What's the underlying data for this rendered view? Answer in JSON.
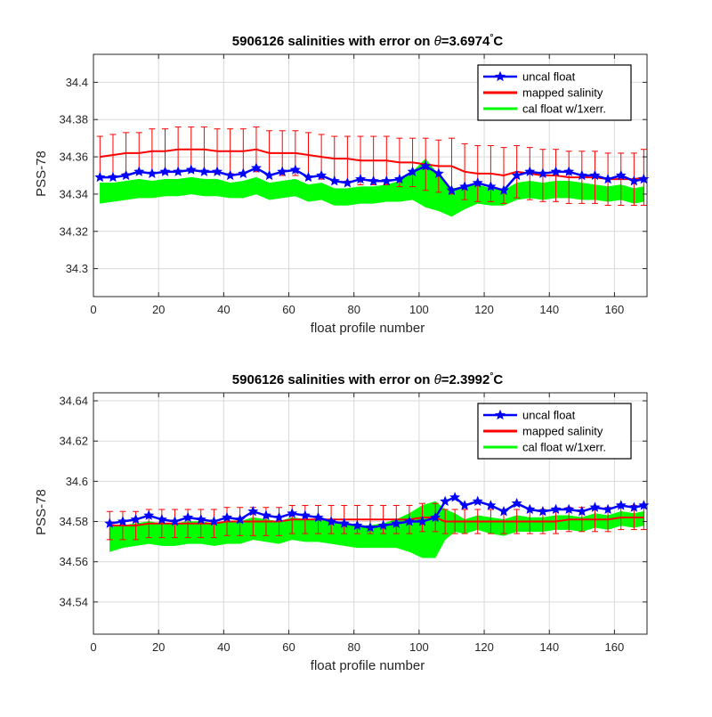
{
  "figure": {
    "background": "#ffffff",
    "axes_background": "#ffffff",
    "colors": {
      "uncal": "#0000ff",
      "mapped": "#ff0000",
      "cal": "#00ff00",
      "grid": "#d9d9d9",
      "axis": "#262626"
    }
  },
  "chart_data": [
    {
      "type": "line",
      "title_main": "5906126 salinities with error on ",
      "title_theta": "θ",
      "title_value": "=3.6974",
      "title_deg": "°",
      "title_unit": "C",
      "xlabel": "float profile number",
      "ylabel": "PSS-78",
      "xlim": [
        0,
        170
      ],
      "ylim": [
        34.285,
        34.415
      ],
      "xticks": [
        0,
        20,
        40,
        60,
        80,
        100,
        120,
        140,
        160
      ],
      "xtick_labels": [
        "0",
        "20",
        "40",
        "60",
        "80",
        "100",
        "120",
        "140",
        "160"
      ],
      "yticks": [
        34.3,
        34.32,
        34.34,
        34.36,
        34.38,
        34.4
      ],
      "ytick_labels": [
        "34.3",
        "34.32",
        "34.34",
        "34.36",
        "34.38",
        "34.4"
      ],
      "grid": true,
      "legend_position": "top-right",
      "legend": [
        "uncal float",
        "mapped salinity",
        "cal float w/1xerr."
      ],
      "x": [
        2,
        6,
        10,
        14,
        18,
        22,
        26,
        30,
        34,
        38,
        42,
        46,
        50,
        54,
        58,
        62,
        66,
        70,
        74,
        78,
        82,
        86,
        90,
        94,
        98,
        102,
        106,
        110,
        114,
        118,
        122,
        126,
        130,
        134,
        138,
        142,
        146,
        150,
        154,
        158,
        162,
        166,
        169
      ],
      "series": [
        {
          "name": "uncal float",
          "style": "line-star",
          "y": [
            34.349,
            34.349,
            34.35,
            34.352,
            34.351,
            34.352,
            34.352,
            34.353,
            34.352,
            34.352,
            34.35,
            34.351,
            34.354,
            34.35,
            34.352,
            34.353,
            34.349,
            34.35,
            34.347,
            34.346,
            34.348,
            34.347,
            34.347,
            34.348,
            34.352,
            34.355,
            34.351,
            34.342,
            34.344,
            34.346,
            34.344,
            34.342,
            34.35,
            34.352,
            34.351,
            34.352,
            34.352,
            34.35,
            34.35,
            34.348,
            34.35,
            34.347,
            34.348
          ]
        },
        {
          "name": "mapped salinity",
          "style": "line-errorbar",
          "y": [
            34.36,
            34.361,
            34.362,
            34.362,
            34.363,
            34.363,
            34.364,
            34.364,
            34.364,
            34.363,
            34.363,
            34.363,
            34.364,
            34.362,
            34.362,
            34.362,
            34.361,
            34.36,
            34.359,
            34.359,
            34.358,
            34.358,
            34.358,
            34.357,
            34.357,
            34.356,
            34.355,
            34.355,
            34.352,
            34.351,
            34.351,
            34.35,
            34.352,
            34.351,
            34.35,
            34.35,
            34.349,
            34.349,
            34.349,
            34.348,
            34.348,
            34.348,
            34.349
          ],
          "err": [
            0.011,
            0.011,
            0.011,
            0.011,
            0.012,
            0.012,
            0.012,
            0.012,
            0.012,
            0.012,
            0.012,
            0.012,
            0.012,
            0.012,
            0.012,
            0.012,
            0.012,
            0.012,
            0.012,
            0.012,
            0.013,
            0.013,
            0.013,
            0.013,
            0.013,
            0.014,
            0.014,
            0.015,
            0.015,
            0.015,
            0.015,
            0.015,
            0.014,
            0.014,
            0.014,
            0.014,
            0.014,
            0.014,
            0.014,
            0.014,
            0.014,
            0.014,
            0.015
          ]
        },
        {
          "name": "cal float w/1xerr.",
          "style": "band",
          "upper": [
            34.346,
            34.346,
            34.347,
            34.348,
            34.347,
            34.348,
            34.348,
            34.349,
            34.348,
            34.348,
            34.346,
            34.347,
            34.349,
            34.346,
            34.347,
            34.348,
            34.345,
            34.346,
            34.343,
            34.343,
            34.344,
            34.344,
            34.345,
            34.347,
            34.352,
            34.359,
            34.35,
            34.343,
            34.344,
            34.345,
            34.343,
            34.342,
            34.346,
            34.347,
            34.346,
            34.347,
            34.347,
            34.346,
            34.345,
            34.344,
            34.345,
            34.343,
            34.344
          ],
          "lower": [
            34.335,
            34.336,
            34.337,
            34.338,
            34.338,
            34.339,
            34.339,
            34.34,
            34.339,
            34.339,
            34.338,
            34.338,
            34.34,
            34.337,
            34.338,
            34.339,
            34.336,
            34.337,
            34.334,
            34.334,
            34.335,
            34.335,
            34.336,
            34.336,
            34.337,
            34.333,
            34.331,
            34.328,
            34.332,
            34.335,
            34.334,
            34.334,
            34.337,
            34.338,
            34.337,
            34.338,
            34.338,
            34.337,
            34.337,
            34.336,
            34.337,
            34.335,
            34.336
          ]
        }
      ]
    },
    {
      "type": "line",
      "title_main": "5906126 salinities with error on ",
      "title_theta": "θ",
      "title_value": "=2.3992",
      "title_deg": "°",
      "title_unit": "C",
      "xlabel": "float profile number",
      "ylabel": "PSS-78",
      "xlim": [
        0,
        170
      ],
      "ylim": [
        34.524,
        34.644
      ],
      "xticks": [
        0,
        20,
        40,
        60,
        80,
        100,
        120,
        140,
        160
      ],
      "xtick_labels": [
        "0",
        "20",
        "40",
        "60",
        "80",
        "100",
        "120",
        "140",
        "160"
      ],
      "yticks": [
        34.54,
        34.56,
        34.58,
        34.6,
        34.62,
        34.64
      ],
      "ytick_labels": [
        "34.54",
        "34.56",
        "34.58",
        "34.6",
        "34.62",
        "34.64"
      ],
      "grid": true,
      "legend_position": "top-right",
      "legend": [
        "uncal float",
        "mapped salinity",
        "cal float w/1xerr."
      ],
      "x": [
        5,
        9,
        13,
        17,
        21,
        25,
        29,
        33,
        37,
        41,
        45,
        49,
        53,
        57,
        61,
        65,
        69,
        73,
        77,
        81,
        85,
        89,
        93,
        97,
        101,
        105,
        108,
        111,
        114,
        118,
        122,
        126,
        130,
        134,
        138,
        142,
        146,
        150,
        154,
        158,
        162,
        166,
        169
      ],
      "series": [
        {
          "name": "uncal float",
          "style": "line-star",
          "y": [
            34.579,
            34.58,
            34.581,
            34.583,
            34.581,
            34.58,
            34.582,
            34.581,
            34.58,
            34.582,
            34.581,
            34.585,
            34.583,
            34.582,
            34.584,
            34.583,
            34.582,
            34.58,
            34.579,
            34.578,
            34.577,
            34.578,
            34.579,
            34.58,
            34.58,
            34.582,
            34.59,
            34.592,
            34.588,
            34.59,
            34.588,
            34.585,
            34.589,
            34.586,
            34.585,
            34.586,
            34.586,
            34.585,
            34.587,
            34.586,
            34.588,
            34.587,
            34.588
          ]
        },
        {
          "name": "mapped salinity",
          "style": "line-errorbar",
          "y": [
            34.578,
            34.578,
            34.578,
            34.579,
            34.579,
            34.579,
            34.579,
            34.579,
            34.579,
            34.58,
            34.58,
            34.58,
            34.58,
            34.58,
            34.581,
            34.581,
            34.581,
            34.581,
            34.581,
            34.581,
            34.581,
            34.581,
            34.581,
            34.581,
            34.582,
            34.582,
            34.58,
            34.58,
            34.58,
            34.58,
            34.58,
            34.58,
            34.58,
            34.58,
            34.58,
            34.58,
            34.581,
            34.581,
            34.581,
            34.581,
            34.582,
            34.582,
            34.582
          ],
          "err": [
            0.007,
            0.007,
            0.007,
            0.007,
            0.007,
            0.007,
            0.007,
            0.007,
            0.007,
            0.007,
            0.007,
            0.007,
            0.007,
            0.007,
            0.007,
            0.007,
            0.007,
            0.007,
            0.007,
            0.007,
            0.007,
            0.007,
            0.007,
            0.007,
            0.007,
            0.007,
            0.006,
            0.006,
            0.006,
            0.006,
            0.006,
            0.006,
            0.006,
            0.006,
            0.006,
            0.006,
            0.006,
            0.006,
            0.006,
            0.006,
            0.006,
            0.006,
            0.006
          ]
        },
        {
          "name": "cal float w/1xerr.",
          "style": "band",
          "upper": [
            34.578,
            34.578,
            34.579,
            34.58,
            34.579,
            34.579,
            34.58,
            34.58,
            34.579,
            34.58,
            34.58,
            34.582,
            34.581,
            34.58,
            34.582,
            34.581,
            34.581,
            34.58,
            34.579,
            34.578,
            34.578,
            34.579,
            34.581,
            34.584,
            34.588,
            34.59,
            34.586,
            34.584,
            34.581,
            34.583,
            34.582,
            34.581,
            34.583,
            34.582,
            34.582,
            34.583,
            34.583,
            34.582,
            34.584,
            34.583,
            34.585,
            34.584,
            34.585
          ],
          "lower": [
            34.565,
            34.567,
            34.568,
            34.569,
            34.568,
            34.568,
            34.569,
            34.569,
            34.568,
            34.569,
            34.569,
            34.571,
            34.57,
            34.569,
            34.571,
            34.57,
            34.57,
            34.569,
            34.568,
            34.567,
            34.567,
            34.567,
            34.567,
            34.565,
            34.562,
            34.562,
            34.571,
            34.575,
            34.574,
            34.576,
            34.574,
            34.573,
            34.575,
            34.575,
            34.575,
            34.576,
            34.576,
            34.575,
            34.577,
            34.576,
            34.578,
            34.577,
            34.578
          ]
        }
      ]
    }
  ]
}
